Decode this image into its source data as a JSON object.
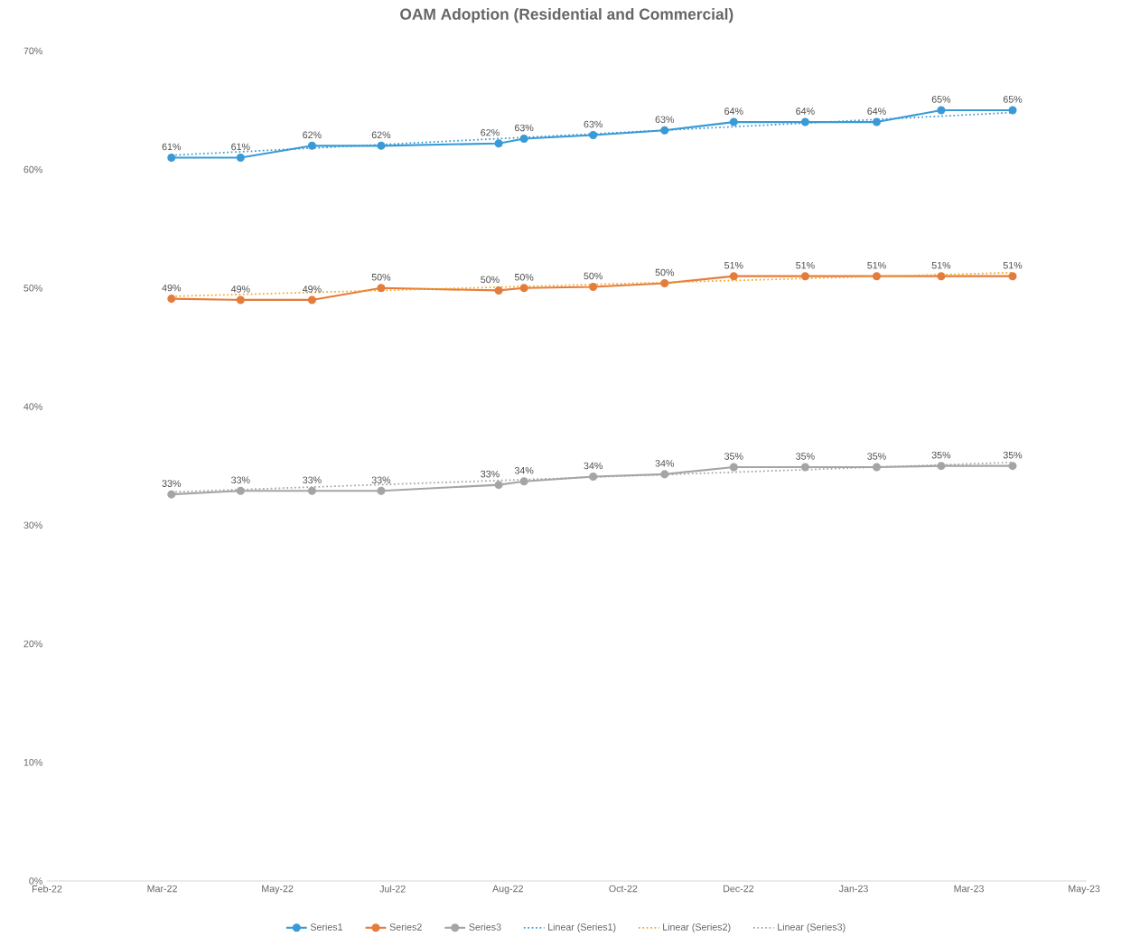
{
  "chart_data": {
    "type": "line",
    "title": "OAM Adoption (Residential and Commercial)",
    "x": [
      "2022-03-31",
      "2022-04-30",
      "2022-05-31",
      "2022-06-30",
      "2022-08-20",
      "2022-08-31",
      "2022-09-30",
      "2022-10-31",
      "2022-11-30",
      "2022-12-31",
      "2023-01-31",
      "2023-02-28",
      "2023-03-31"
    ],
    "series": [
      {
        "name": "Series1",
        "color": "#3a9ad6",
        "values": [
          61.0,
          61.0,
          62.0,
          62.0,
          62.2,
          62.6,
          62.9,
          63.3,
          64.0,
          64.0,
          64.0,
          65.0,
          65.0
        ],
        "value_labels": [
          "61%",
          "61%",
          "62%",
          "62%",
          "62%",
          "63%",
          "63%",
          "63%",
          "64%",
          "64%",
          "64%",
          "65%",
          "65%"
        ]
      },
      {
        "name": "Series2",
        "color": "#e47c3c",
        "values": [
          49.1,
          49.0,
          49.0,
          50.0,
          49.8,
          50.0,
          50.1,
          50.4,
          51.0,
          51.0,
          51.0,
          51.0,
          51.0
        ],
        "value_labels": [
          "49%",
          "49%",
          "49%",
          "50%",
          "50%",
          "50%",
          "50%",
          "50%",
          "51%",
          "51%",
          "51%",
          "51%",
          "51%"
        ]
      },
      {
        "name": "Series3",
        "color": "#a5a5a5",
        "values": [
          32.6,
          32.9,
          32.9,
          32.9,
          33.4,
          33.7,
          34.1,
          34.3,
          34.9,
          34.9,
          34.9,
          35.0,
          35.0
        ],
        "value_labels": [
          "33%",
          "33%",
          "33%",
          "33%",
          "33%",
          "34%",
          "34%",
          "34%",
          "35%",
          "35%",
          "35%",
          "35%",
          "35%"
        ]
      },
      {
        "name": "Linear (Series1)",
        "type": "line",
        "color": "#3a9ad6",
        "marker": "none",
        "line_style": "dotted",
        "x": [
          "2022-03-31",
          "2023-03-31"
        ],
        "values": [
          61.2,
          64.8
        ]
      },
      {
        "name": "Linear (Series2)",
        "type": "line",
        "color": "#f5a623",
        "marker": "none",
        "line_style": "dotted",
        "x": [
          "2022-03-31",
          "2023-03-31"
        ],
        "values": [
          49.3,
          51.3
        ]
      },
      {
        "name": "Linear (Series3)",
        "type": "line",
        "color": "#a5a5a5",
        "marker": "none",
        "line_style": "dotted",
        "x": [
          "2022-03-31",
          "2023-03-31"
        ],
        "values": [
          32.8,
          35.3
        ]
      }
    ],
    "xlim": [
      "2022-02-05",
      "2023-05-02"
    ],
    "xticks": [
      {
        "value": "2022-02-05",
        "label": "Feb-22"
      },
      {
        "value": "2022-03-27",
        "label": "Mar-22"
      },
      {
        "value": "2022-05-16",
        "label": "May-22"
      },
      {
        "value": "2022-07-05",
        "label": "Jul-22"
      },
      {
        "value": "2022-08-24",
        "label": "Aug-22"
      },
      {
        "value": "2022-10-13",
        "label": "Oct-22"
      },
      {
        "value": "2022-12-02",
        "label": "Dec-22"
      },
      {
        "value": "2023-01-21",
        "label": "Jan-23"
      },
      {
        "value": "2023-03-12",
        "label": "Mar-23"
      },
      {
        "value": "2023-05-01",
        "label": "May-23"
      }
    ],
    "ylim": [
      0,
      70
    ],
    "yticks": [
      {
        "value": 0,
        "label": "0%"
      },
      {
        "value": 10,
        "label": "10%"
      },
      {
        "value": 20,
        "label": "20%"
      },
      {
        "value": 30,
        "label": "30%"
      },
      {
        "value": 40,
        "label": "40%"
      },
      {
        "value": 50,
        "label": "50%"
      },
      {
        "value": 60,
        "label": "60%"
      },
      {
        "value": 70,
        "label": "70%"
      }
    ],
    "legend": "bottom",
    "marker": "circle",
    "line_style": "solid"
  }
}
